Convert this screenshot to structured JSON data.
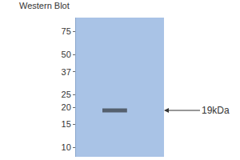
{
  "chart_data": {
    "type": "blot",
    "title": "Western Blot",
    "log": "y",
    "ylim": [
      8.5,
      95
    ],
    "yticks": [
      10,
      15,
      20,
      25,
      37,
      50,
      75
    ],
    "color": "#a9c3e6",
    "band": {
      "value": 19,
      "label": "19kDa"
    }
  }
}
